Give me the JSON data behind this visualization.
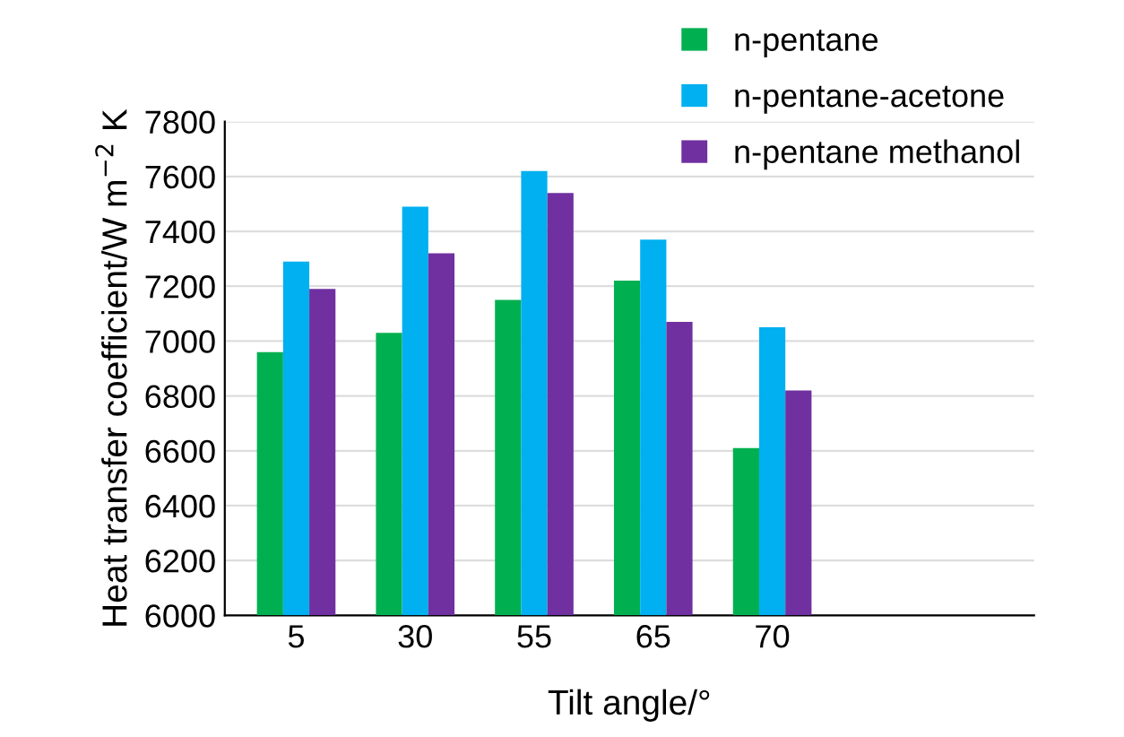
{
  "chart_data": {
    "type": "bar",
    "xlabel": "Tilt angle/°",
    "ylabel": "Heat transfer coefficient/W m$^{−2}$ K",
    "categories": [
      "5",
      "30",
      "55",
      "65",
      "70"
    ],
    "series": [
      {
        "name": "n-pentane",
        "color": "#00b050",
        "values": [
          6960,
          7030,
          7150,
          7220,
          6610
        ]
      },
      {
        "name": "n-pentane-acetone",
        "color": "#00b0f0",
        "values": [
          7290,
          7490,
          7620,
          7370,
          7050
        ]
      },
      {
        "name": "n-pentane methanol",
        "color": "#7030a0",
        "values": [
          7190,
          7320,
          7540,
          7070,
          6820
        ]
      }
    ],
    "ylim": [
      6000,
      7800
    ],
    "yticks": [
      6000,
      6200,
      6400,
      6600,
      6800,
      7000,
      7200,
      7400,
      7600,
      7800
    ],
    "grid": "y",
    "legend": "top right"
  }
}
